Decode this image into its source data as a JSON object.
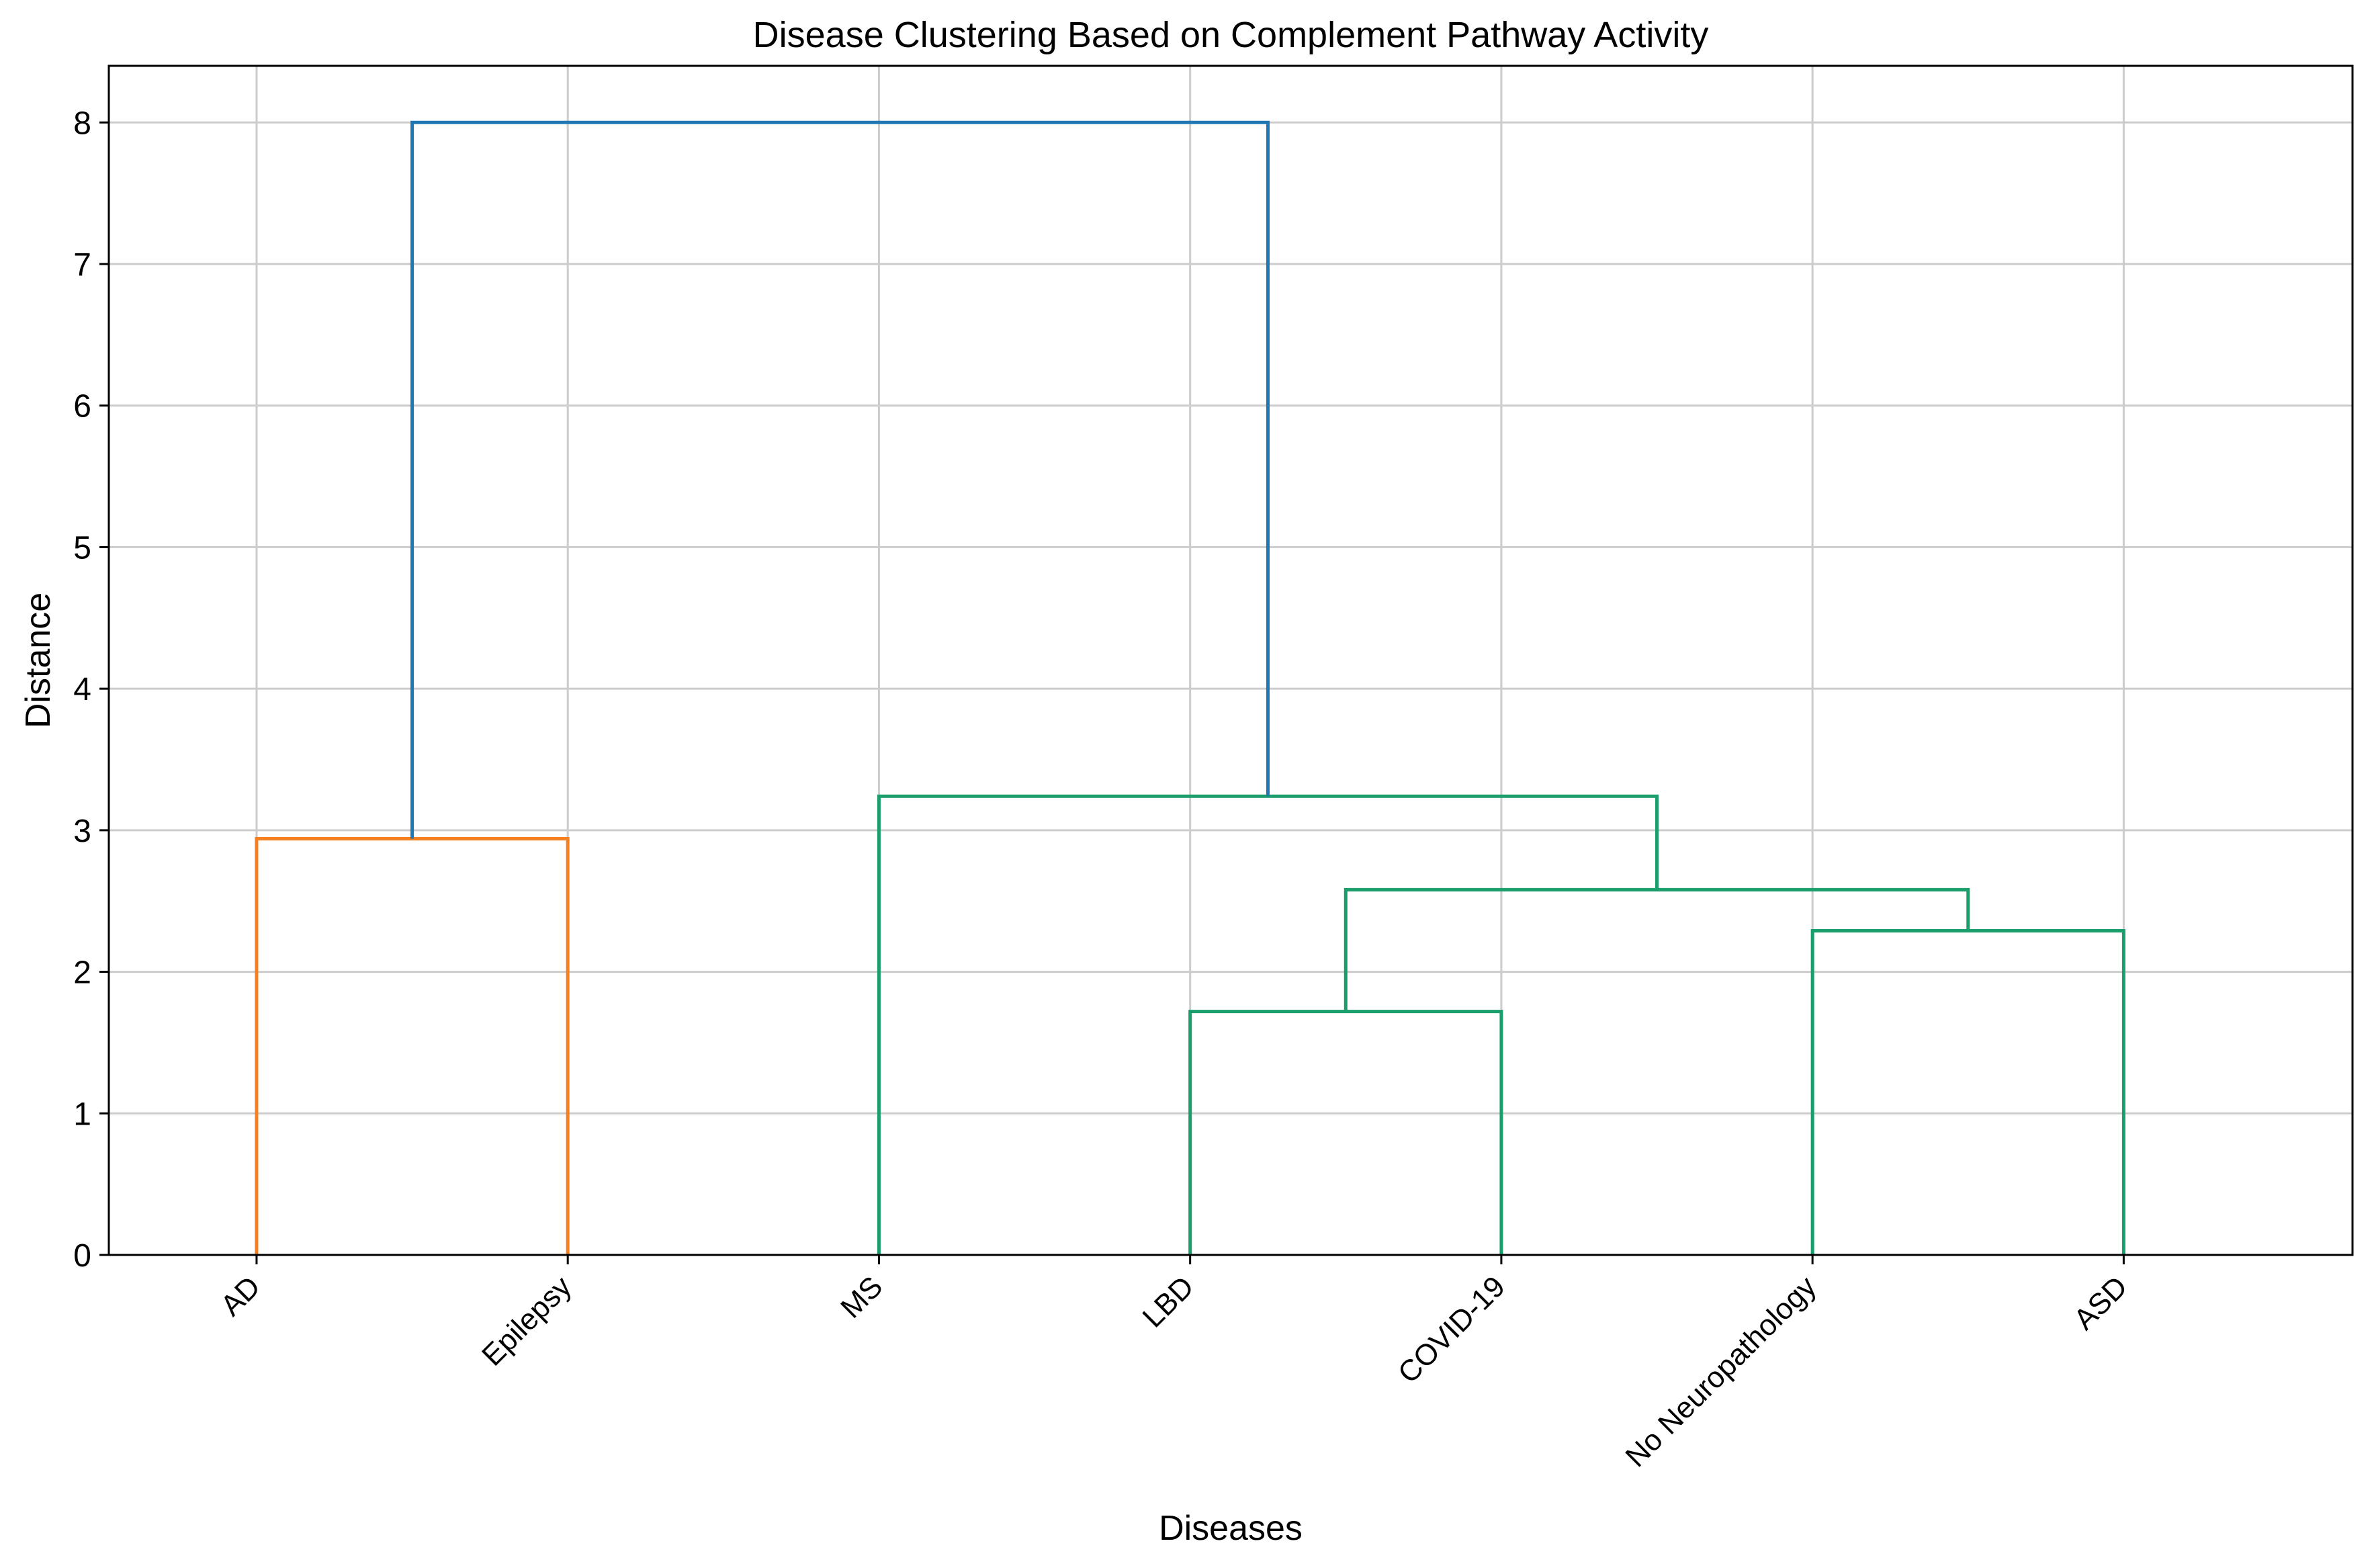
{
  "chart_data": {
    "type": "dendrogram",
    "title": "Disease Clustering Based on Complement Pathway Activity",
    "xlabel": "Diseases",
    "ylabel": "Distance",
    "ylim": [
      0,
      8.4
    ],
    "yticks": [
      0,
      1,
      2,
      3,
      4,
      5,
      6,
      7,
      8
    ],
    "grid": true,
    "leaves": [
      "AD",
      "Epilepsy",
      "MS",
      "LBD",
      "COVID-19",
      "No Neuropathology",
      "ASD"
    ],
    "merges": [
      {
        "left": "leaf:LBD",
        "right": "leaf:COVID-19",
        "distance": 1.72,
        "color": "#1a9e6c"
      },
      {
        "left": "leaf:No Neuropathology",
        "right": "leaf:ASD",
        "distance": 2.29,
        "color": "#1a9e6c"
      },
      {
        "left": "merge:0",
        "right": "merge:1",
        "distance": 2.58,
        "color": "#1a9e6c"
      },
      {
        "left": "leaf:AD",
        "right": "leaf:Epilepsy",
        "distance": 2.94,
        "color": "#f5801f"
      },
      {
        "left": "leaf:MS",
        "right": "merge:2",
        "distance": 3.24,
        "color": "#1a9e6c"
      },
      {
        "left": "merge:3",
        "right": "merge:4",
        "distance": 8.0,
        "color": "#1f77b4"
      }
    ]
  }
}
